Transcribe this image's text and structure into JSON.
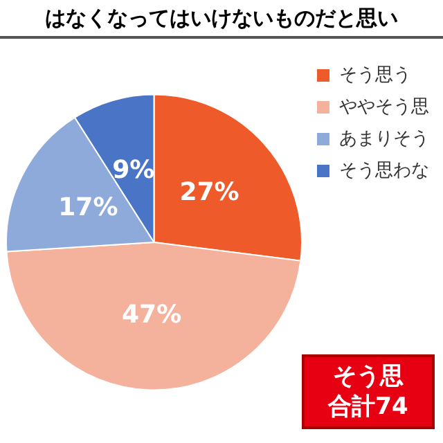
{
  "chart_data": {
    "type": "pie",
    "title": "はなくなってはいけないものだと思い",
    "categories": [
      "そう思う",
      "ややそう思",
      "あまりそう",
      "そう思わな"
    ],
    "values": [
      27,
      47,
      17,
      9
    ],
    "colors": [
      "#ee5a2a",
      "#f4b19b",
      "#8eaadb",
      "#4a74c6"
    ],
    "value_labels": [
      "27%",
      "47%",
      "17%",
      "9%"
    ],
    "legend": "right",
    "annotations": [
      "そう思",
      "合計74"
    ]
  }
}
